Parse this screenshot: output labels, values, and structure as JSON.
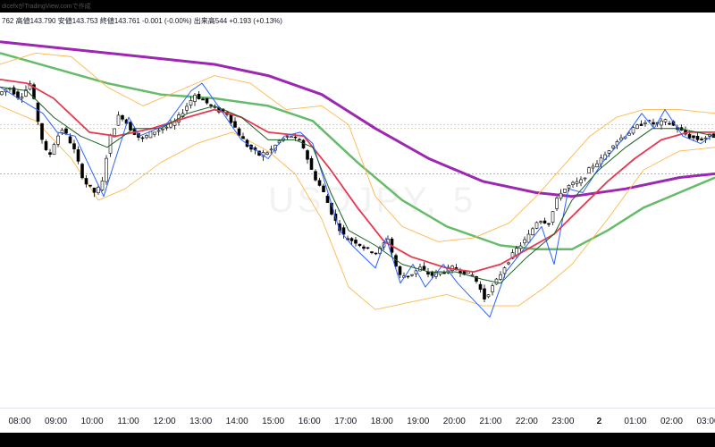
{
  "header": {
    "info": "762  高値143.790  安値143.753  終値143.761  -0.001 (-0.00%)  出来高544  +0.193 (+0.13%)",
    "attribution": "dicefxがTradingView.comで作成"
  },
  "watermark": {
    "symbol": "USDJPY, 5"
  },
  "colors": {
    "bull": "#ffffff",
    "bear": "#000000",
    "sma200": "#9c27b0",
    "sma100": "#66bb6a",
    "ema20": "#e53950",
    "bollinger": "#ffb74d",
    "zigzag": "#2962ff",
    "fastline": "#1b5e20"
  },
  "chart_data": {
    "type": "candlestick",
    "symbol": "USDJPY",
    "timeframe": "5",
    "ylim": [
      143.0,
      144.0
    ],
    "x_ticks": [
      "08:00",
      "09:00",
      "10:00",
      "11:00",
      "12:00",
      "13:00",
      "14:00",
      "15:00",
      "16:00",
      "17:00",
      "18:00",
      "19:00",
      "20:00",
      "21:00",
      "22:00",
      "23:00",
      "2",
      "01:00",
      "02:00",
      "03:00"
    ],
    "bold_ticks": [
      "2"
    ],
    "candle_path": [
      [
        0,
        143.83
      ],
      [
        12,
        143.85
      ],
      [
        24,
        143.82
      ],
      [
        36,
        143.86
      ],
      [
        48,
        143.72
      ],
      [
        56,
        143.66
      ],
      [
        64,
        143.71
      ],
      [
        72,
        143.74
      ],
      [
        84,
        143.69
      ],
      [
        96,
        143.6
      ],
      [
        108,
        143.57
      ],
      [
        116,
        143.59
      ],
      [
        124,
        143.71
      ],
      [
        136,
        143.78
      ],
      [
        148,
        143.74
      ],
      [
        160,
        143.71
      ],
      [
        172,
        143.73
      ],
      [
        184,
        143.74
      ],
      [
        196,
        143.75
      ],
      [
        208,
        143.79
      ],
      [
        220,
        143.83
      ],
      [
        232,
        143.81
      ],
      [
        244,
        143.79
      ],
      [
        256,
        143.78
      ],
      [
        268,
        143.73
      ],
      [
        280,
        143.69
      ],
      [
        292,
        143.67
      ],
      [
        304,
        143.68
      ],
      [
        316,
        143.71
      ],
      [
        328,
        143.72
      ],
      [
        340,
        143.7
      ],
      [
        352,
        143.62
      ],
      [
        364,
        143.57
      ],
      [
        376,
        143.5
      ],
      [
        388,
        143.45
      ],
      [
        400,
        143.44
      ],
      [
        412,
        143.42
      ],
      [
        424,
        143.41
      ],
      [
        436,
        143.45
      ],
      [
        448,
        143.35
      ],
      [
        460,
        143.35
      ],
      [
        472,
        143.37
      ],
      [
        484,
        143.35
      ],
      [
        496,
        143.36
      ],
      [
        508,
        143.37
      ],
      [
        520,
        143.36
      ],
      [
        532,
        143.35
      ],
      [
        544,
        143.29
      ],
      [
        556,
        143.33
      ],
      [
        568,
        143.38
      ],
      [
        580,
        143.42
      ],
      [
        592,
        143.45
      ],
      [
        604,
        143.5
      ],
      [
        616,
        143.49
      ],
      [
        628,
        143.57
      ],
      [
        640,
        143.59
      ],
      [
        652,
        143.6
      ],
      [
        664,
        143.64
      ],
      [
        676,
        143.66
      ],
      [
        688,
        143.7
      ],
      [
        700,
        143.72
      ],
      [
        712,
        143.74
      ],
      [
        724,
        143.76
      ],
      [
        736,
        143.75
      ],
      [
        748,
        143.76
      ],
      [
        760,
        143.74
      ],
      [
        772,
        143.72
      ],
      [
        784,
        143.71
      ],
      [
        796,
        143.72
      ]
    ],
    "series": [
      {
        "name": "",
        "role": "sma200",
        "points": [
          [
            0,
            143.97
          ],
          [
            80,
            143.95
          ],
          [
            160,
            143.93
          ],
          [
            240,
            143.91
          ],
          [
            300,
            143.88
          ],
          [
            360,
            143.83
          ],
          [
            420,
            143.74
          ],
          [
            480,
            143.66
          ],
          [
            540,
            143.6
          ],
          [
            600,
            143.57
          ],
          [
            640,
            143.56
          ],
          [
            700,
            143.58
          ],
          [
            760,
            143.61
          ],
          [
            800,
            143.62
          ]
        ]
      },
      {
        "name": "",
        "role": "sma100",
        "points": [
          [
            0,
            143.94
          ],
          [
            60,
            143.9
          ],
          [
            120,
            143.86
          ],
          [
            180,
            143.83
          ],
          [
            240,
            143.82
          ],
          [
            300,
            143.8
          ],
          [
            350,
            143.76
          ],
          [
            400,
            143.65
          ],
          [
            450,
            143.55
          ],
          [
            500,
            143.48
          ],
          [
            560,
            143.43
          ],
          [
            600,
            143.42
          ],
          [
            640,
            143.42
          ],
          [
            680,
            143.47
          ],
          [
            720,
            143.53
          ],
          [
            760,
            143.57
          ],
          [
            800,
            143.61
          ]
        ]
      },
      {
        "name": "",
        "role": "ema20",
        "points": [
          [
            0,
            143.87
          ],
          [
            30,
            143.86
          ],
          [
            60,
            143.82
          ],
          [
            100,
            143.73
          ],
          [
            130,
            143.72
          ],
          [
            170,
            143.74
          ],
          [
            210,
            143.77
          ],
          [
            240,
            143.79
          ],
          [
            270,
            143.77
          ],
          [
            300,
            143.73
          ],
          [
            340,
            143.72
          ],
          [
            370,
            143.63
          ],
          [
            400,
            143.53
          ],
          [
            430,
            143.44
          ],
          [
            460,
            143.4
          ],
          [
            500,
            143.37
          ],
          [
            530,
            143.36
          ],
          [
            560,
            143.38
          ],
          [
            590,
            143.42
          ],
          [
            620,
            143.46
          ],
          [
            650,
            143.53
          ],
          [
            680,
            143.6
          ],
          [
            710,
            143.66
          ],
          [
            740,
            143.71
          ],
          [
            770,
            143.73
          ],
          [
            800,
            143.73
          ]
        ]
      },
      {
        "name": "",
        "role": "bb_upper",
        "points": [
          [
            0,
            143.91
          ],
          [
            40,
            143.94
          ],
          [
            80,
            143.93
          ],
          [
            120,
            143.85
          ],
          [
            160,
            143.8
          ],
          [
            200,
            143.84
          ],
          [
            240,
            143.88
          ],
          [
            280,
            143.86
          ],
          [
            320,
            143.79
          ],
          [
            360,
            143.8
          ],
          [
            390,
            143.75
          ],
          [
            420,
            143.56
          ],
          [
            450,
            143.48
          ],
          [
            490,
            143.44
          ],
          [
            530,
            143.45
          ],
          [
            570,
            143.49
          ],
          [
            600,
            143.56
          ],
          [
            630,
            143.64
          ],
          [
            660,
            143.72
          ],
          [
            690,
            143.77
          ],
          [
            720,
            143.79
          ],
          [
            760,
            143.79
          ],
          [
            800,
            143.78
          ]
        ]
      },
      {
        "name": "",
        "role": "bb_lower",
        "points": [
          [
            0,
            143.8
          ],
          [
            40,
            143.76
          ],
          [
            80,
            143.66
          ],
          [
            110,
            143.55
          ],
          [
            140,
            143.58
          ],
          [
            180,
            143.65
          ],
          [
            220,
            143.7
          ],
          [
            260,
            143.73
          ],
          [
            300,
            143.68
          ],
          [
            330,
            143.62
          ],
          [
            360,
            143.5
          ],
          [
            390,
            143.32
          ],
          [
            420,
            143.26
          ],
          [
            460,
            143.28
          ],
          [
            500,
            143.3
          ],
          [
            540,
            143.27
          ],
          [
            580,
            143.27
          ],
          [
            610,
            143.32
          ],
          [
            640,
            143.38
          ],
          [
            680,
            143.5
          ],
          [
            720,
            143.63
          ],
          [
            760,
            143.68
          ],
          [
            800,
            143.69
          ]
        ]
      },
      {
        "name": "",
        "role": "zigzag",
        "points": [
          [
            0,
            143.85
          ],
          [
            48,
            143.78
          ],
          [
            64,
            143.73
          ],
          [
            84,
            143.72
          ],
          [
            116,
            143.56
          ],
          [
            144,
            143.77
          ],
          [
            156,
            143.72
          ],
          [
            186,
            143.75
          ],
          [
            214,
            143.84
          ],
          [
            226,
            143.86
          ],
          [
            244,
            143.8
          ],
          [
            270,
            143.71
          ],
          [
            300,
            143.66
          ],
          [
            318,
            143.72
          ],
          [
            336,
            143.73
          ],
          [
            350,
            143.7
          ],
          [
            380,
            143.47
          ],
          [
            394,
            143.43
          ],
          [
            420,
            143.37
          ],
          [
            432,
            143.45
          ],
          [
            448,
            143.33
          ],
          [
            462,
            143.38
          ],
          [
            476,
            143.32
          ],
          [
            496,
            143.38
          ],
          [
            512,
            143.33
          ],
          [
            548,
            143.24
          ],
          [
            566,
            143.36
          ],
          [
            586,
            143.42
          ],
          [
            606,
            143.48
          ],
          [
            620,
            143.38
          ],
          [
            636,
            143.58
          ],
          [
            652,
            143.57
          ],
          [
            674,
            143.65
          ],
          [
            700,
            143.72
          ],
          [
            718,
            143.78
          ],
          [
            732,
            143.74
          ],
          [
            744,
            143.79
          ],
          [
            764,
            143.72
          ],
          [
            784,
            143.7
          ],
          [
            796,
            143.72
          ]
        ]
      },
      {
        "name": "",
        "role": "fastline",
        "points": [
          [
            0,
            143.85
          ],
          [
            30,
            143.84
          ],
          [
            60,
            143.77
          ],
          [
            90,
            143.72
          ],
          [
            120,
            143.69
          ],
          [
            150,
            143.74
          ],
          [
            180,
            143.74
          ],
          [
            210,
            143.78
          ],
          [
            240,
            143.8
          ],
          [
            270,
            143.77
          ],
          [
            300,
            143.71
          ],
          [
            330,
            143.71
          ],
          [
            350,
            143.69
          ],
          [
            370,
            143.57
          ],
          [
            390,
            143.47
          ],
          [
            420,
            143.43
          ],
          [
            450,
            143.38
          ],
          [
            480,
            143.36
          ],
          [
            510,
            143.36
          ],
          [
            540,
            143.34
          ],
          [
            560,
            143.33
          ],
          [
            590,
            143.4
          ],
          [
            620,
            143.46
          ],
          [
            640,
            143.55
          ],
          [
            670,
            143.63
          ],
          [
            700,
            143.69
          ],
          [
            730,
            143.74
          ],
          [
            760,
            143.74
          ],
          [
            800,
            143.72
          ]
        ]
      }
    ],
    "hlines": [
      143.75,
      143.74,
      143.62
    ],
    "vlines": [],
    "grid": false,
    "legend": "none"
  }
}
